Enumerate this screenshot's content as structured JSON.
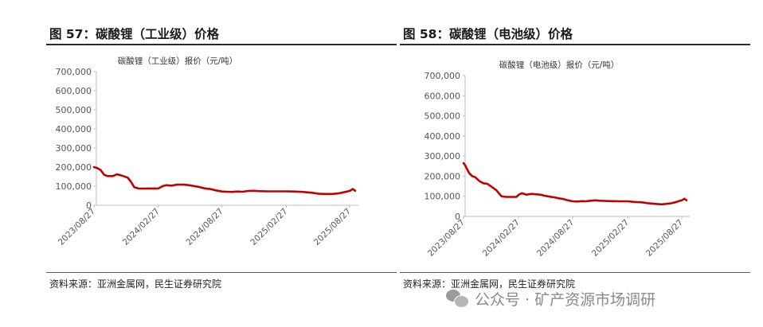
{
  "charts": [
    {
      "figure_title": "图 57：碳酸锂（工业级）价格",
      "source": "资料来源：亚洲金属网，民生证券研究院",
      "chart_data": {
        "type": "line",
        "title": "碳酸锂（工业级）报价（元/吨）",
        "xlabel": "",
        "ylabel": "",
        "ylim": [
          0,
          700000
        ],
        "yticks": [
          "700,000",
          "600,000",
          "500,000",
          "400,000",
          "300,000",
          "200,000",
          "100,000",
          "0"
        ],
        "xlim": [
          "2023-08-27",
          "2025-09-12"
        ],
        "xticks": [
          {
            "date": "2023-08-27",
            "label": "2023/08/27"
          },
          {
            "date": "2024-02-27",
            "label": "2024/02/27"
          },
          {
            "date": "2024-08-27",
            "label": "2024/08/27"
          },
          {
            "date": "2025-02-27",
            "label": "2025/02/27"
          },
          {
            "date": "2025-08-27",
            "label": "2025/08/27"
          }
        ],
        "grid": false,
        "legend": "none",
        "color": "#c00000",
        "series": [
          {
            "x": [
              "2023-08-27",
              "2023-09-05",
              "2023-09-15",
              "2023-09-25",
              "2023-10-05",
              "2023-10-20",
              "2023-11-01",
              "2023-11-15",
              "2023-12-01",
              "2023-12-10",
              "2023-12-20",
              "2024-01-01",
              "2024-01-15",
              "2024-02-01",
              "2024-02-27",
              "2024-03-10",
              "2024-03-20",
              "2024-04-05",
              "2024-04-20",
              "2024-05-10",
              "2024-05-25",
              "2024-06-10",
              "2024-06-25",
              "2024-07-10",
              "2024-07-25",
              "2024-08-10",
              "2024-08-27",
              "2024-09-10",
              "2024-09-25",
              "2024-10-10",
              "2024-10-25",
              "2024-11-10",
              "2024-11-25",
              "2024-12-10",
              "2025-01-01",
              "2025-02-01",
              "2025-02-27",
              "2025-03-20",
              "2025-04-15",
              "2025-05-10",
              "2025-06-01",
              "2025-06-20",
              "2025-07-05",
              "2025-07-15",
              "2025-07-25",
              "2025-08-05",
              "2025-08-15",
              "2025-08-27",
              "2025-09-05",
              "2025-09-12"
            ],
            "y": [
              200000,
              195000,
              185000,
              160000,
              153000,
              153000,
              162000,
              155000,
              145000,
              125000,
              95000,
              88000,
              87000,
              88000,
              88000,
              100000,
              105000,
              103000,
              108000,
              108000,
              105000,
              100000,
              95000,
              88000,
              85000,
              78000,
              72000,
              71000,
              70000,
              72000,
              71000,
              75000,
              76000,
              74000,
              73000,
              73000,
              73000,
              72000,
              70000,
              66000,
              60000,
              59000,
              59000,
              60000,
              62000,
              66000,
              70000,
              75000,
              85000,
              76000
            ]
          }
        ]
      }
    },
    {
      "figure_title": "图 58：碳酸锂（电池级）价格",
      "source": "资料来源：亚洲金属网，民生证券研究院",
      "chart_data": {
        "type": "line",
        "title": "碳酸锂（电池级）报价（元/吨）",
        "xlabel": "",
        "ylabel": "",
        "ylim": [
          0,
          700000
        ],
        "yticks": [
          "700,000",
          "600,000",
          "500,000",
          "400,000",
          "300,000",
          "200,000",
          "100,000",
          "0"
        ],
        "xlim": [
          "2023-08-27",
          "2025-09-12"
        ],
        "xticks": [
          {
            "date": "2023-08-27",
            "label": "2023/08/27"
          },
          {
            "date": "2024-02-27",
            "label": "2024/02/27"
          },
          {
            "date": "2024-08-27",
            "label": "2024/08/27"
          },
          {
            "date": "2025-02-27",
            "label": "2025/02/27"
          },
          {
            "date": "2025-08-27",
            "label": "2025/08/27"
          }
        ],
        "grid": false,
        "legend": "none",
        "color": "#c00000",
        "series": [
          {
            "x": [
              "2023-08-27",
              "2023-09-01",
              "2023-09-08",
              "2023-09-15",
              "2023-09-25",
              "2023-10-05",
              "2023-10-20",
              "2023-11-01",
              "2023-11-15",
              "2023-12-01",
              "2023-12-15",
              "2024-01-01",
              "2024-01-15",
              "2024-02-01",
              "2024-02-20",
              "2024-03-01",
              "2024-03-10",
              "2024-03-25",
              "2024-04-10",
              "2024-04-25",
              "2024-05-10",
              "2024-05-25",
              "2024-06-10",
              "2024-06-25",
              "2024-07-10",
              "2024-07-25",
              "2024-08-10",
              "2024-08-27",
              "2024-09-10",
              "2024-09-25",
              "2024-10-10",
              "2024-10-25",
              "2024-11-10",
              "2024-11-25",
              "2024-12-10",
              "2025-01-01",
              "2025-02-01",
              "2025-02-27",
              "2025-03-20",
              "2025-04-15",
              "2025-05-10",
              "2025-06-01",
              "2025-06-20",
              "2025-07-05",
              "2025-07-20",
              "2025-08-05",
              "2025-08-15",
              "2025-08-27",
              "2025-09-05",
              "2025-09-12"
            ],
            "y": [
              265000,
              255000,
              235000,
              215000,
              200000,
              195000,
              175000,
              165000,
              162000,
              145000,
              130000,
              100000,
              97000,
              97000,
              97000,
              110000,
              115000,
              108000,
              112000,
              110000,
              108000,
              103000,
              98000,
              95000,
              90000,
              87000,
              80000,
              75000,
              74000,
              76000,
              75000,
              78000,
              80000,
              78000,
              77000,
              76000,
              75000,
              75000,
              72000,
              70000,
              65000,
              62000,
              60000,
              62000,
              65000,
              70000,
              75000,
              80000,
              88000,
              80000
            ]
          }
        ]
      }
    }
  ],
  "watermark": {
    "text": "公众号 · 矿产资源市场调研",
    "icon": "wechat-icon"
  }
}
